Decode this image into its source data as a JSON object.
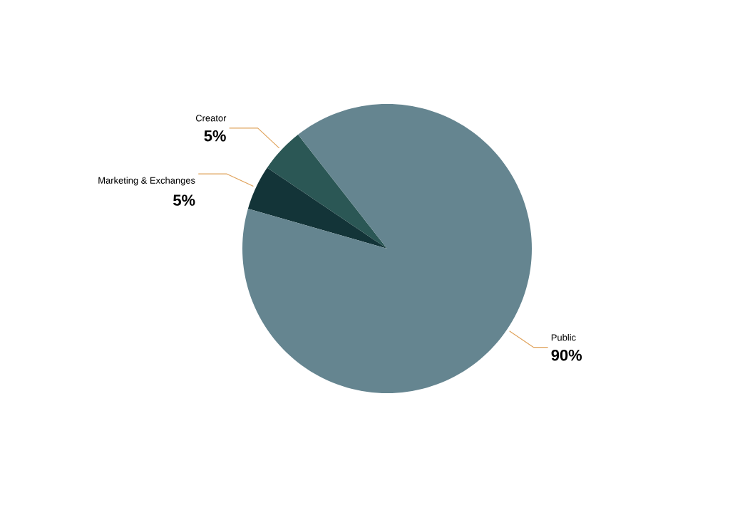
{
  "chart_data": {
    "type": "pie",
    "categories": [
      "Creator",
      "Marketing & Exchanges",
      "Public"
    ],
    "values": [
      5,
      5,
      90
    ],
    "colors": [
      "#2b5755",
      "#133438",
      "#658590"
    ],
    "value_labels": [
      "5%",
      "5%",
      "90%"
    ]
  }
}
